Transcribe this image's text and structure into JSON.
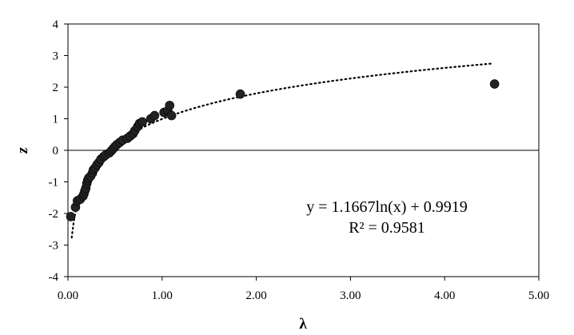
{
  "chart_data": {
    "type": "scatter",
    "title": "",
    "xlabel": "λ",
    "ylabel": "z",
    "xlim": [
      0,
      5
    ],
    "ylim": [
      -4,
      4
    ],
    "x_ticks": [
      "0.00",
      "1.00",
      "2.00",
      "3.00",
      "4.00",
      "5.00"
    ],
    "y_ticks": [
      "-4",
      "-3",
      "-2",
      "-1",
      "0",
      "1",
      "2",
      "3",
      "4"
    ],
    "grid": false,
    "legend": "none",
    "marker_color": "#222222",
    "points": [
      [
        0.03,
        -2.1
      ],
      [
        0.08,
        -1.8
      ],
      [
        0.1,
        -1.6
      ],
      [
        0.13,
        -1.55
      ],
      [
        0.16,
        -1.45
      ],
      [
        0.17,
        -1.38
      ],
      [
        0.18,
        -1.28
      ],
      [
        0.19,
        -1.2
      ],
      [
        0.2,
        -1.05
      ],
      [
        0.21,
        -0.95
      ],
      [
        0.22,
        -0.88
      ],
      [
        0.24,
        -0.82
      ],
      [
        0.26,
        -0.72
      ],
      [
        0.27,
        -0.62
      ],
      [
        0.29,
        -0.55
      ],
      [
        0.31,
        -0.45
      ],
      [
        0.33,
        -0.38
      ],
      [
        0.35,
        -0.28
      ],
      [
        0.38,
        -0.2
      ],
      [
        0.4,
        -0.15
      ],
      [
        0.44,
        -0.08
      ],
      [
        0.46,
        -0.02
      ],
      [
        0.48,
        0.05
      ],
      [
        0.5,
        0.12
      ],
      [
        0.52,
        0.18
      ],
      [
        0.55,
        0.25
      ],
      [
        0.58,
        0.32
      ],
      [
        0.63,
        0.38
      ],
      [
        0.66,
        0.45
      ],
      [
        0.69,
        0.52
      ],
      [
        0.71,
        0.62
      ],
      [
        0.74,
        0.75
      ],
      [
        0.76,
        0.85
      ],
      [
        0.79,
        0.9
      ],
      [
        0.88,
        1.0
      ],
      [
        0.92,
        1.1
      ],
      [
        1.02,
        1.2
      ],
      [
        1.06,
        1.25
      ],
      [
        1.08,
        1.42
      ],
      [
        1.1,
        1.1
      ],
      [
        1.83,
        1.78
      ],
      [
        4.53,
        2.1
      ]
    ],
    "trendline": {
      "type": "log",
      "a": 1.1667,
      "b": 0.9919,
      "x_range": [
        0.04,
        4.5
      ],
      "equation": "y = 1.1667ln(x) + 0.9919",
      "r2": "R² = 0.9581"
    }
  }
}
